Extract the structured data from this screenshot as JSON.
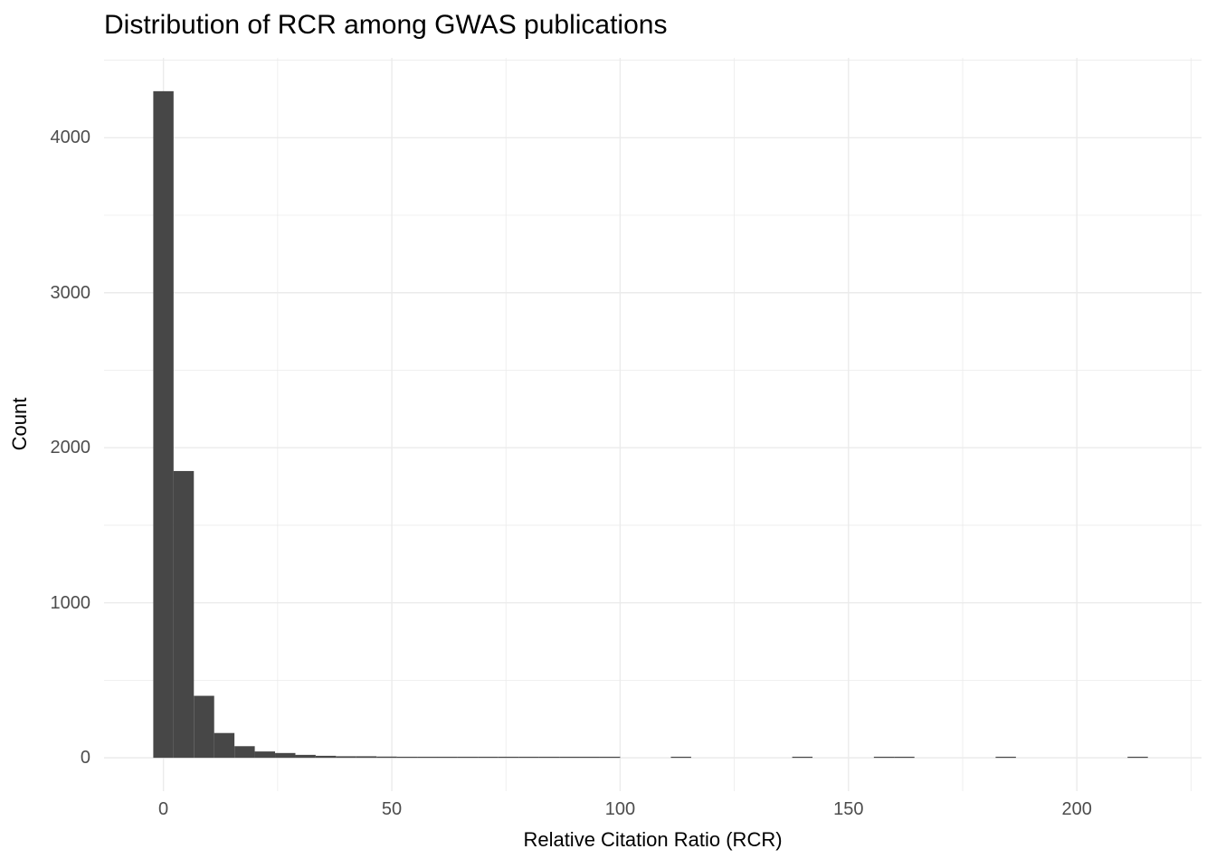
{
  "title": "Distribution of RCR among GWAS publications",
  "chart_data": {
    "type": "bar",
    "subtype": "histogram",
    "title": "Distribution of RCR among GWAS publications",
    "xlabel": "Relative Citation Ratio (RCR)",
    "ylabel": "Count",
    "legend": "none",
    "grid": true,
    "background": "#ffffff",
    "bar_color": "#474747",
    "grid_color": "#ebebeb",
    "tick_label_color": "#4d4d4d",
    "axis_title_color": "#000000",
    "xlim": [
      -13,
      227.3
    ],
    "ylim": [
      -215,
      4515
    ],
    "x_ticks_major": [
      0,
      50,
      100,
      150,
      200
    ],
    "x_ticks_minor": [
      25,
      75,
      125,
      175,
      225
    ],
    "y_ticks_major": [
      0,
      1000,
      2000,
      3000,
      4000
    ],
    "y_ticks_minor": [
      500,
      1500,
      2500,
      3500,
      4500
    ],
    "binwidth": 4.4444,
    "bins": [
      {
        "center": 0,
        "count": 4300
      },
      {
        "center": 4.44,
        "count": 1850
      },
      {
        "center": 8.89,
        "count": 400
      },
      {
        "center": 13.33,
        "count": 160
      },
      {
        "center": 17.78,
        "count": 75
      },
      {
        "center": 22.22,
        "count": 41
      },
      {
        "center": 26.67,
        "count": 31
      },
      {
        "center": 31.11,
        "count": 19
      },
      {
        "center": 35.56,
        "count": 13
      },
      {
        "center": 40,
        "count": 10
      },
      {
        "center": 44.44,
        "count": 10
      },
      {
        "center": 48.89,
        "count": 8
      },
      {
        "center": 53.33,
        "count": 6
      },
      {
        "center": 57.78,
        "count": 5
      },
      {
        "center": 62.22,
        "count": 5
      },
      {
        "center": 66.67,
        "count": 6
      },
      {
        "center": 71.11,
        "count": 7
      },
      {
        "center": 75.56,
        "count": 4
      },
      {
        "center": 80,
        "count": 6
      },
      {
        "center": 84.44,
        "count": 5
      },
      {
        "center": 88.89,
        "count": 4
      },
      {
        "center": 93.33,
        "count": 4
      },
      {
        "center": 97.78,
        "count": 3
      },
      {
        "center": 113.33,
        "count": 2
      },
      {
        "center": 139.9,
        "count": 2
      },
      {
        "center": 157.78,
        "count": 2
      },
      {
        "center": 162.22,
        "count": 1
      },
      {
        "center": 184.44,
        "count": 1
      },
      {
        "center": 213.33,
        "count": 1
      }
    ]
  }
}
